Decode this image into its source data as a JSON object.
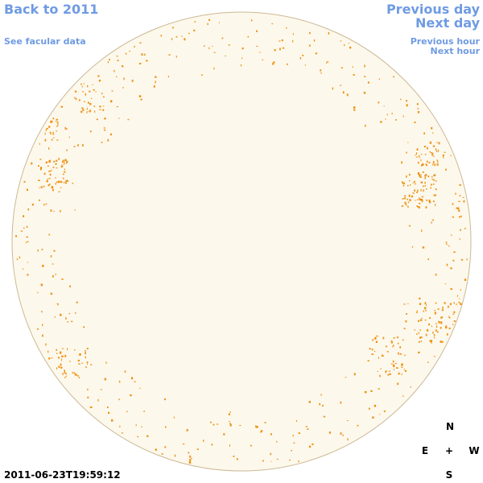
{
  "links": {
    "back_to_year": "Back to 2011",
    "see_facular_data": "See facular data",
    "previous_day": "Previous day",
    "next_day": "Next day",
    "previous_hour": "Previous hour",
    "next_hour": "Next hour"
  },
  "timestamp": "2011-06-23T19:59:12",
  "compass": {
    "north": "N",
    "east": "E",
    "center": "+",
    "west": "W",
    "south": "S"
  }
}
